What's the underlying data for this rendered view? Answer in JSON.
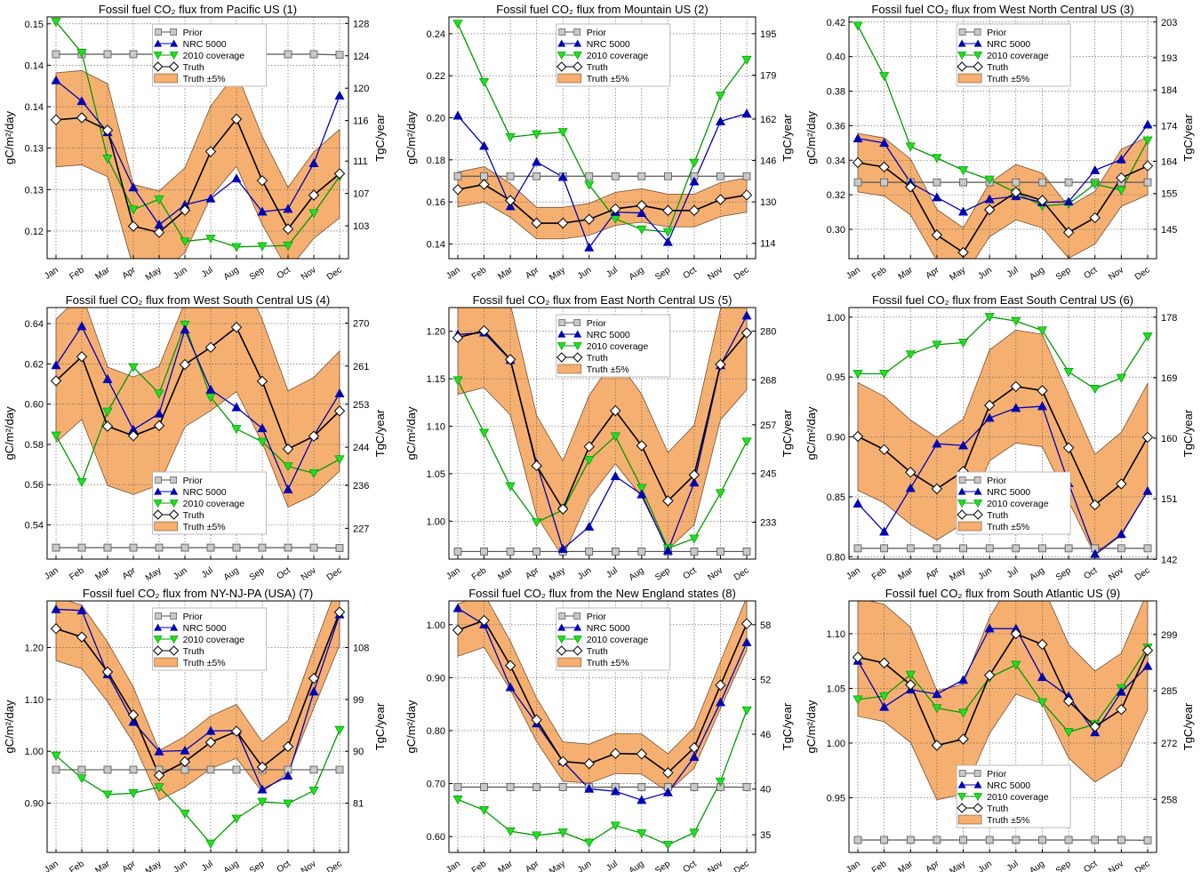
{
  "figure": {
    "left_axis_label": "gC/m²/day",
    "right_axis_label": "TgC/year",
    "legend": [
      "Prior",
      "NRC 5000",
      "2010 coverage",
      "Truth",
      "Truth ±5%"
    ]
  },
  "colors": {
    "prior": "#808080",
    "prior_fill": "#c8c8c8",
    "nrc": "#0000b4",
    "coverage": "#009900",
    "coverage_fill": "#22dd22",
    "truth": "#000000",
    "band": "#f5b071",
    "band_edge": "#7a5030"
  },
  "chart_data": [
    {
      "type": "line",
      "title": "Fossil fuel CO₂ flux from Pacific US (1)",
      "xlabel": "",
      "ylabel": "gC/m²/day",
      "y2label": "TgC/year",
      "categories": [
        "Jan",
        "Feb",
        "Mar",
        "Apr",
        "May",
        "Jun",
        "Jul",
        "Aug",
        "Sep",
        "Oct",
        "Nov",
        "Dec"
      ],
      "ylim": [
        0.116,
        0.151
      ],
      "yticks": [
        0.12,
        0.126,
        0.132,
        0.138,
        0.144,
        0.15
      ],
      "ytick_labels": [
        "0.12",
        "0.13",
        "0.13",
        "0.14",
        "0.14",
        "0.15"
      ],
      "y2ticks": [
        103,
        107,
        111,
        116,
        120,
        124,
        128
      ],
      "y2_scale": 853,
      "legend_box": "upper-center",
      "band_pct": 5,
      "grid": true,
      "series": [
        {
          "name": "Prior",
          "values": [
            0.1456,
            0.1456,
            0.1456,
            0.1456,
            0.1456,
            0.1456,
            0.1456,
            0.1456,
            0.1456,
            0.1456,
            0.1456,
            0.1455
          ]
        },
        {
          "name": "NRC 5000",
          "values": [
            0.1418,
            0.1388,
            0.1343,
            0.1263,
            0.1209,
            0.1238,
            0.1247,
            0.1276,
            0.1228,
            0.1232,
            0.1298,
            0.1396
          ]
        },
        {
          "name": "2010 coverage",
          "values": [
            0.1503,
            0.1458,
            0.1305,
            0.1231,
            0.1246,
            0.1185,
            0.1189,
            0.1177,
            0.1178,
            0.1179,
            0.1226,
            0.1279
          ]
        },
        {
          "name": "Truth",
          "values": [
            0.1361,
            0.1364,
            0.1346,
            0.1207,
            0.1198,
            0.123,
            0.1315,
            0.1362,
            0.1273,
            0.1203,
            0.1252,
            0.1283
          ]
        }
      ]
    },
    {
      "type": "line",
      "title": "Fossil fuel CO₂ flux from Mountain US (2)",
      "xlabel": "",
      "ylabel": "gC/m²/day",
      "y2label": "TgC/year",
      "categories": [
        "Jan",
        "Feb",
        "Mar",
        "Apr",
        "May",
        "Jun",
        "Jul",
        "Aug",
        "Sep",
        "Oct",
        "Nov",
        "Dec"
      ],
      "ylim": [
        0.133,
        0.248
      ],
      "yticks": [
        0.14,
        0.16,
        0.18,
        0.2,
        0.22,
        0.24
      ],
      "ytick_labels": [
        "0.14",
        "0.16",
        "0.18",
        "0.20",
        "0.22",
        "0.24"
      ],
      "y2ticks": [
        114,
        130,
        146,
        162,
        179,
        195
      ],
      "y2_scale": 812.5,
      "legend_box": "upper-center",
      "band_pct": 5,
      "grid": true,
      "series": [
        {
          "name": "Prior",
          "values": [
            0.1722,
            0.1722,
            0.1722,
            0.1722,
            0.1722,
            0.1722,
            0.1722,
            0.1722,
            0.1722,
            0.1722,
            0.1722,
            0.1722
          ]
        },
        {
          "name": "NRC 5000",
          "values": [
            0.201,
            0.1866,
            0.1579,
            0.179,
            0.1718,
            0.1383,
            0.1552,
            0.1547,
            0.1409,
            0.1697,
            0.1983,
            0.202
          ]
        },
        {
          "name": "2010 coverage",
          "values": [
            0.2448,
            0.217,
            0.1908,
            0.1922,
            0.1932,
            0.1681,
            0.152,
            0.1469,
            0.1457,
            0.1786,
            0.2106,
            0.2276
          ]
        },
        {
          "name": "Truth",
          "values": [
            0.1659,
            0.1683,
            0.1607,
            0.1499,
            0.1499,
            0.1517,
            0.1567,
            0.1583,
            0.1559,
            0.1559,
            0.1611,
            0.1633
          ]
        }
      ]
    },
    {
      "type": "line",
      "title": "Fossil fuel CO₂ flux from West North Central US (3)",
      "xlabel": "",
      "ylabel": "gC/m²/day",
      "y2label": "TgC/year",
      "categories": [
        "Jan",
        "Feb",
        "Mar",
        "Apr",
        "May",
        "Jun",
        "Jul",
        "Aug",
        "Sep",
        "Oct",
        "Nov",
        "Dec"
      ],
      "ylim": [
        0.283,
        0.423
      ],
      "yticks": [
        0.3,
        0.32,
        0.34,
        0.36,
        0.38,
        0.4,
        0.42
      ],
      "ytick_labels": [
        "0.30",
        "0.32",
        "0.34",
        "0.36",
        "0.38",
        "0.40",
        "0.42"
      ],
      "y2ticks": [
        145,
        155,
        164,
        174,
        184,
        193,
        203
      ],
      "y2_scale": 483.3,
      "legend_box": "upper-center",
      "band_pct": 5,
      "grid": true,
      "series": [
        {
          "name": "Prior",
          "values": [
            0.3272,
            0.3272,
            0.3272,
            0.3272,
            0.3272,
            0.3272,
            0.3272,
            0.3272,
            0.3272,
            0.3272,
            0.3272,
            0.3272
          ]
        },
        {
          "name": "NRC 5000",
          "values": [
            0.3526,
            0.35,
            0.327,
            0.3185,
            0.3102,
            0.3174,
            0.3191,
            0.3156,
            0.316,
            0.3342,
            0.3404,
            0.3606
          ]
        },
        {
          "name": "2010 coverage",
          "values": [
            0.4179,
            0.3887,
            0.3479,
            0.3413,
            0.3342,
            0.3288,
            0.3212,
            0.3135,
            0.3147,
            0.3262,
            0.3226,
            0.3515
          ]
        },
        {
          "name": "Truth",
          "values": [
            0.3386,
            0.3361,
            0.3245,
            0.2967,
            0.2866,
            0.3113,
            0.3215,
            0.3167,
            0.2982,
            0.3067,
            0.3298,
            0.3367
          ]
        }
      ]
    },
    {
      "type": "line",
      "title": "Fossil fuel CO₂ flux from West South Central US (4)",
      "xlabel": "",
      "ylabel": "gC/m²/day",
      "y2label": "TgC/year",
      "categories": [
        "Jan",
        "Feb",
        "Mar",
        "Apr",
        "May",
        "Jun",
        "Jul",
        "Aug",
        "Sep",
        "Oct",
        "Nov",
        "Dec"
      ],
      "ylim": [
        0.523,
        0.648
      ],
      "yticks": [
        0.54,
        0.56,
        0.58,
        0.6,
        0.62,
        0.64
      ],
      "ytick_labels": [
        "0.54",
        "0.56",
        "0.58",
        "0.60",
        "0.62",
        "0.64"
      ],
      "y2ticks": [
        227,
        236,
        244,
        253,
        261,
        270
      ],
      "y2_scale": 421.7,
      "legend_box": "lower-center",
      "band_pct": 5,
      "grid": true,
      "series": [
        {
          "name": "Prior",
          "values": [
            0.5287,
            0.5287,
            0.5287,
            0.5287,
            0.5287,
            0.5287,
            0.5287,
            0.5287,
            0.5287,
            0.5287,
            0.5287,
            0.5285
          ]
        },
        {
          "name": "NRC 5000",
          "values": [
            0.6193,
            0.6387,
            0.6124,
            0.5873,
            0.5953,
            0.637,
            0.6072,
            0.5984,
            0.588,
            0.5576,
            0.5844,
            0.6053
          ]
        },
        {
          "name": "2010 coverage",
          "values": [
            0.5844,
            0.5613,
            0.5963,
            0.6184,
            0.6053,
            0.6395,
            0.6034,
            0.5877,
            0.5813,
            0.5691,
            0.5657,
            0.5726
          ]
        },
        {
          "name": "Truth",
          "values": [
            0.6116,
            0.6236,
            0.589,
            0.5843,
            0.5893,
            0.6197,
            0.6282,
            0.6382,
            0.6114,
            0.5777,
            0.5841,
            0.5966
          ]
        }
      ]
    },
    {
      "type": "line",
      "title": "Fossil fuel CO₂ flux from East North Central US (5)",
      "xlabel": "",
      "ylabel": "gC/m²/day",
      "y2label": "TgC/year",
      "categories": [
        "Jan",
        "Feb",
        "Mar",
        "Apr",
        "May",
        "Jun",
        "Jul",
        "Aug",
        "Sep",
        "Oct",
        "Nov",
        "Dec"
      ],
      "ylim": [
        0.96,
        1.225
      ],
      "yticks": [
        1.0,
        1.05,
        1.1,
        1.15,
        1.2
      ],
      "ytick_labels": [
        "1.00",
        "1.05",
        "1.10",
        "1.15",
        "1.20"
      ],
      "y2ticks": [
        233,
        245,
        257,
        268,
        280
      ],
      "y2_scale": 233.3,
      "legend_box": "upper-center",
      "band_pct": 5,
      "grid": true,
      "series": [
        {
          "name": "Prior",
          "values": [
            0.968,
            0.968,
            0.968,
            0.968,
            0.968,
            0.968,
            0.968,
            0.968,
            0.968,
            0.968,
            0.968,
            0.968
          ]
        },
        {
          "name": "NRC 5000",
          "values": [
            1.1966,
            1.1986,
            1.1697,
            1.0607,
            0.9707,
            0.9941,
            1.0473,
            1.0282,
            0.969,
            1.0406,
            1.1642,
            1.2165
          ]
        },
        {
          "name": "2010 coverage",
          "values": [
            1.1483,
            1.0931,
            1.0368,
            0.9989,
            1.0116,
            1.0644,
            1.0894,
            1.0349,
            0.9714,
            0.9817,
            1.0296,
            1.0839
          ]
        },
        {
          "name": "Truth",
          "values": [
            1.1933,
            1.2006,
            1.1703,
            1.0584,
            1.0128,
            1.0785,
            1.1163,
            1.0795,
            1.0213,
            1.0486,
            1.1651,
            1.1983
          ]
        }
      ]
    },
    {
      "type": "line",
      "title": "Fossil fuel CO₂ flux from East South Central US (6)",
      "xlabel": "",
      "ylabel": "gC/m²/day",
      "y2label": "TgC/year",
      "categories": [
        "Jan",
        "Feb",
        "Mar",
        "Apr",
        "May",
        "Jun",
        "Jul",
        "Aug",
        "Sep",
        "Oct",
        "Nov",
        "Dec"
      ],
      "ylim": [
        0.798,
        1.008
      ],
      "yticks": [
        0.8,
        0.85,
        0.9,
        0.95,
        1.0
      ],
      "ytick_labels": [
        "0.80",
        "0.85",
        "0.90",
        "0.95",
        "1.00"
      ],
      "y2ticks": [
        142,
        151,
        160,
        169,
        178
      ],
      "y2_scale": 178,
      "legend_box": "lower-center",
      "band_pct": 5,
      "grid": true,
      "series": [
        {
          "name": "Prior",
          "values": [
            0.807,
            0.807,
            0.807,
            0.807,
            0.807,
            0.807,
            0.807,
            0.807,
            0.807,
            0.807,
            0.807,
            0.807
          ]
        },
        {
          "name": "NRC 5000",
          "values": [
            0.8443,
            0.8209,
            0.8572,
            0.8943,
            0.8928,
            0.9158,
            0.9241,
            0.9256,
            0.8613,
            0.8022,
            0.8188,
            0.8548
          ]
        },
        {
          "name": "2010 coverage",
          "values": [
            0.9527,
            0.9527,
            0.969,
            0.977,
            0.9787,
            1.0002,
            0.9968,
            0.9889,
            0.9543,
            0.9402,
            0.9493,
            0.9839
          ]
        },
        {
          "name": "Truth",
          "values": [
            0.9004,
            0.8894,
            0.8705,
            0.8567,
            0.8713,
            0.9264,
            0.9421,
            0.9387,
            0.8909,
            0.8433,
            0.8608,
            0.8997
          ]
        }
      ]
    },
    {
      "type": "line",
      "title": "Fossil fuel CO₂ flux from NY-NJ-PA (USA) (7)",
      "xlabel": "",
      "ylabel": "gC/m²/day",
      "y2label": "TgC/year",
      "categories": [
        "Jan",
        "Feb",
        "Mar",
        "Apr",
        "May",
        "Jun",
        "Jul",
        "Aug",
        "Sep",
        "Oct",
        "Nov",
        "Dec"
      ],
      "ylim": [
        0.805,
        1.29
      ],
      "yticks": [
        0.9,
        1.0,
        1.1,
        1.2
      ],
      "ytick_labels": [
        "0.90",
        "1.00",
        "1.10",
        "1.20"
      ],
      "y2ticks": [
        81,
        90,
        99,
        108
      ],
      "y2_scale": 90,
      "legend_box": "upper-center",
      "band_pct": 5,
      "grid": true,
      "series": [
        {
          "name": "Prior",
          "values": [
            0.9645,
            0.9645,
            0.9645,
            0.9645,
            0.9645,
            0.9645,
            0.9645,
            0.9645,
            0.9645,
            0.9645,
            0.9645,
            0.9645
          ]
        },
        {
          "name": "NRC 5000",
          "values": [
            1.2738,
            1.2715,
            1.1485,
            1.0566,
            0.9997,
            1.0014,
            1.0392,
            1.0401,
            0.9264,
            0.9526,
            1.115,
            1.2638
          ]
        },
        {
          "name": "2010 coverage",
          "values": [
            0.9917,
            0.948,
            0.9166,
            0.9194,
            0.9308,
            0.88,
            0.8221,
            0.8702,
            0.9027,
            0.8993,
            0.9241,
            1.0413
          ]
        },
        {
          "name": "Truth",
          "values": [
            1.2365,
            1.2204,
            1.1531,
            1.0702,
            0.9537,
            0.98,
            1.0173,
            1.0386,
            0.9698,
            1.009,
            1.1406,
            1.2683
          ]
        }
      ]
    },
    {
      "type": "line",
      "title": "Fossil fuel CO₂ flux from the New England states (8)",
      "xlabel": "",
      "ylabel": "gC/m²/day",
      "y2label": "TgC/year",
      "categories": [
        "Jan",
        "Feb",
        "Mar",
        "Apr",
        "May",
        "Jun",
        "Jul",
        "Aug",
        "Sep",
        "Oct",
        "Nov",
        "Dec"
      ],
      "ylim": [
        0.57,
        1.045
      ],
      "yticks": [
        0.6,
        0.7,
        0.8,
        0.9,
        1.0
      ],
      "ytick_labels": [
        "0.60",
        "0.70",
        "0.80",
        "0.90",
        "1.00"
      ],
      "y2ticks": [
        35,
        40,
        46,
        52,
        58
      ],
      "y2_scale": 58,
      "legend_box": "upper-center",
      "band_pct": 5,
      "grid": true,
      "series": [
        {
          "name": "Prior",
          "values": [
            0.6934,
            0.6934,
            0.6934,
            0.6934,
            0.6934,
            0.6934,
            0.6934,
            0.6934,
            0.6934,
            0.6934,
            0.6934,
            0.6934
          ]
        },
        {
          "name": "NRC 5000",
          "values": [
            1.031,
            1.0002,
            0.8818,
            0.8134,
            0.7423,
            0.6901,
            0.6854,
            0.6689,
            0.6833,
            0.7504,
            0.8535,
            0.9666
          ]
        },
        {
          "name": "2010 coverage",
          "values": [
            0.6701,
            0.6499,
            0.6101,
            0.6022,
            0.6079,
            0.5887,
            0.6209,
            0.6062,
            0.5844,
            0.6073,
            0.704,
            0.8384
          ]
        },
        {
          "name": "Truth",
          "values": [
            0.9898,
            1.008,
            0.9229,
            0.8204,
            0.7417,
            0.7376,
            0.7568,
            0.7558,
            0.7204,
            0.7678,
            0.886,
            1.0019
          ]
        }
      ]
    },
    {
      "type": "line",
      "title": "Fossil fuel CO₂ flux from South Atlantic US (9)",
      "xlabel": "",
      "ylabel": "gC/m²/day",
      "y2label": "TgC/year",
      "categories": [
        "Jan",
        "Feb",
        "Mar",
        "Apr",
        "May",
        "Jun",
        "Jul",
        "Aug",
        "Sep",
        "Oct",
        "Nov",
        "Dec"
      ],
      "ylim": [
        0.9,
        1.13
      ],
      "yticks": [
        0.95,
        1.0,
        1.05,
        1.1
      ],
      "ytick_labels": [
        "0.95",
        "1.00",
        "1.05",
        "1.10"
      ],
      "y2ticks": [
        258,
        272,
        285,
        299
      ],
      "y2_scale": 272,
      "legend_box": "lower-center",
      "band_pct": 5,
      "grid": true,
      "series": [
        {
          "name": "Prior",
          "values": [
            0.9114,
            0.9114,
            0.9114,
            0.9114,
            0.9114,
            0.9114,
            0.9114,
            0.9114,
            0.9114,
            0.9114,
            0.9114,
            0.9111
          ]
        },
        {
          "name": "NRC 5000",
          "values": [
            1.0752,
            1.033,
            1.0489,
            1.0448,
            1.0577,
            1.1047,
            1.1046,
            1.0602,
            1.0428,
            1.0098,
            1.0468,
            1.0704
          ]
        },
        {
          "name": "2010 coverage",
          "values": [
            1.0399,
            1.0429,
            1.0625,
            1.032,
            1.0277,
            1.0599,
            1.0716,
            1.0373,
            1.01,
            1.0173,
            1.0502,
            1.0874
          ]
        },
        {
          "name": "Truth",
          "values": [
            1.0785,
            1.0732,
            1.0533,
            0.9979,
            1.0036,
            1.062,
            1.0999,
            1.0902,
            1.0383,
            1.0151,
            1.0307,
            1.0847
          ]
        }
      ]
    }
  ]
}
